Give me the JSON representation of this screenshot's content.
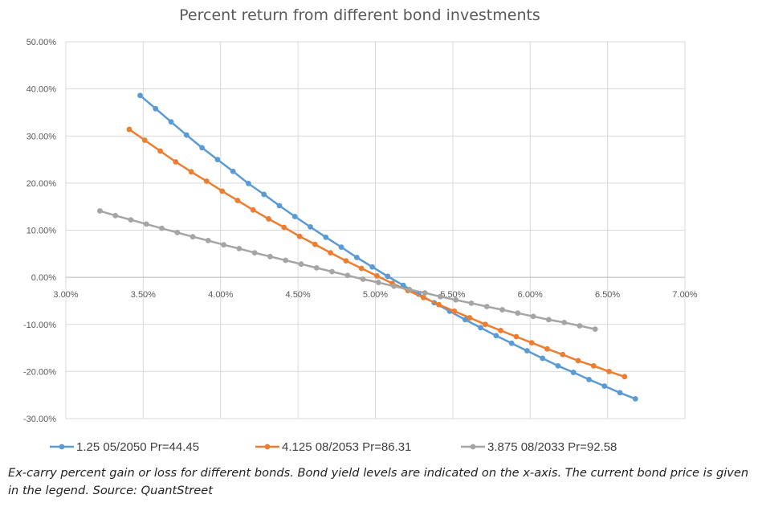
{
  "chart_data": {
    "type": "line",
    "title": "Percent return from different bond investments",
    "xlabel": "",
    "ylabel": "",
    "xlim": [
      0.03,
      0.07
    ],
    "ylim": [
      -0.3,
      0.5
    ],
    "x_ticks": [
      "3.00%",
      "3.50%",
      "4.00%",
      "4.50%",
      "5.00%",
      "5.50%",
      "6.00%",
      "6.50%",
      "7.00%"
    ],
    "y_ticks": [
      "50.00%",
      "40.00%",
      "30.00%",
      "20.00%",
      "10.00%",
      "0.00%",
      "-10.00%",
      "-20.00%",
      "-30.00%"
    ],
    "grid": true,
    "legend_position": "bottom",
    "series": [
      {
        "name": "1.25 05/2050 Pr=44.45",
        "color": "#5B9BD5",
        "x": [
          0.0348,
          0.0358,
          0.0368,
          0.0378,
          0.0388,
          0.0398,
          0.0408,
          0.0418,
          0.0428,
          0.0438,
          0.0448,
          0.0458,
          0.0468,
          0.0478,
          0.0488,
          0.0498,
          0.0508,
          0.0518,
          0.0528,
          0.0538,
          0.0548,
          0.0558,
          0.0568,
          0.0578,
          0.0588,
          0.0598,
          0.0608,
          0.0618,
          0.0628,
          0.0638,
          0.0648,
          0.0658,
          0.0668
        ],
        "y": [
          0.386,
          0.358,
          0.33,
          0.302,
          0.275,
          0.25,
          0.225,
          0.199,
          0.176,
          0.152,
          0.129,
          0.107,
          0.085,
          0.064,
          0.042,
          0.022,
          0.002,
          -0.017,
          -0.036,
          -0.054,
          -0.072,
          -0.09,
          -0.107,
          -0.124,
          -0.14,
          -0.156,
          -0.172,
          -0.188,
          -0.202,
          -0.217,
          -0.231,
          -0.245,
          -0.258
        ]
      },
      {
        "name": "4.125 08/2053 Pr=86.31",
        "color": "#ED7D31",
        "x": [
          0.0341,
          0.0351,
          0.0361,
          0.0371,
          0.0381,
          0.0391,
          0.0401,
          0.0411,
          0.0421,
          0.0431,
          0.0441,
          0.0451,
          0.0461,
          0.0471,
          0.0481,
          0.0491,
          0.0501,
          0.0511,
          0.0521,
          0.0531,
          0.0541,
          0.0551,
          0.0561,
          0.0571,
          0.0581,
          0.0591,
          0.0601,
          0.0611,
          0.0621,
          0.0631,
          0.0641,
          0.0651,
          0.0661
        ],
        "y": [
          0.314,
          0.291,
          0.268,
          0.245,
          0.224,
          0.204,
          0.183,
          0.163,
          0.143,
          0.124,
          0.106,
          0.087,
          0.07,
          0.052,
          0.035,
          0.019,
          0.003,
          -0.013,
          -0.028,
          -0.043,
          -0.058,
          -0.072,
          -0.086,
          -0.1,
          -0.113,
          -0.126,
          -0.139,
          -0.152,
          -0.164,
          -0.177,
          -0.188,
          -0.2,
          -0.211
        ]
      },
      {
        "name": "3.875 08/2033 Pr=92.58",
        "color": "#A5A5A5",
        "x": [
          0.0322,
          0.0332,
          0.0342,
          0.0352,
          0.0362,
          0.0372,
          0.0382,
          0.0392,
          0.0402,
          0.0412,
          0.0422,
          0.0432,
          0.0442,
          0.0452,
          0.0462,
          0.0472,
          0.0482,
          0.0492,
          0.0502,
          0.0512,
          0.0522,
          0.0532,
          0.0542,
          0.0552,
          0.0562,
          0.0572,
          0.0582,
          0.0592,
          0.0602,
          0.0612,
          0.0622,
          0.0632,
          0.0642
        ],
        "y": [
          0.141,
          0.131,
          0.122,
          0.113,
          0.104,
          0.095,
          0.086,
          0.078,
          0.069,
          0.061,
          0.052,
          0.044,
          0.036,
          0.028,
          0.02,
          0.012,
          0.004,
          -0.004,
          -0.011,
          -0.019,
          -0.026,
          -0.033,
          -0.041,
          -0.048,
          -0.055,
          -0.062,
          -0.069,
          -0.076,
          -0.083,
          -0.09,
          -0.096,
          -0.103,
          -0.11
        ]
      }
    ]
  },
  "caption": "Ex-carry percent gain or loss for different bonds. Bond yield levels are indicated on the x-axis. The current bond price is given in the legend. Source: QuantStreet"
}
